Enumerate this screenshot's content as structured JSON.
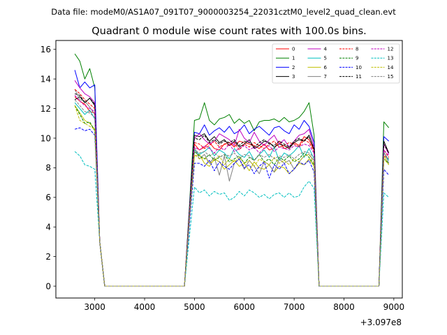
{
  "figure": {
    "suptitle": "Data file: modeM0/AS1A07_091T07_9000003254_22031cztM0_level2_quad_clean.evt"
  },
  "chart_data": {
    "type": "line",
    "title": "Quadrant 0 module wise count rates with 100.0s bins.",
    "xlabel": "",
    "ylabel": "",
    "x_offset_label": "+3.097e8",
    "xlim": [
      2220,
      9170
    ],
    "ylim": [
      -0.8,
      16.6
    ],
    "xticks": [
      3000,
      4000,
      5000,
      6000,
      7000,
      8000,
      9000
    ],
    "xtick_labels": [
      "3000",
      "4000",
      "5000",
      "6000",
      "7000",
      "8000",
      "9000"
    ],
    "yticks": [
      0,
      2,
      4,
      6,
      8,
      10,
      12,
      14,
      16
    ],
    "ytick_labels": [
      "0",
      "2",
      "4",
      "6",
      "8",
      "10",
      "12",
      "14",
      "16"
    ],
    "grid": false,
    "legend_placement": "top-right",
    "legend_columns": 4,
    "x": [
      2600,
      2700,
      2800,
      2900,
      3000,
      3100,
      3200,
      3300,
      3400,
      3500,
      3600,
      3700,
      3800,
      3900,
      4000,
      4100,
      4200,
      4300,
      4400,
      4500,
      4600,
      4700,
      4800,
      4900,
      5000,
      5100,
      5200,
      5300,
      5400,
      5500,
      5600,
      5700,
      5800,
      5900,
      6000,
      6100,
      6200,
      6300,
      6400,
      6500,
      6600,
      6700,
      6800,
      6900,
      7000,
      7100,
      7200,
      7300,
      7400,
      7500,
      7600,
      7700,
      7800,
      7900,
      8000,
      8100,
      8200,
      8300,
      8400,
      8500,
      8600,
      8700,
      8800,
      8900
    ],
    "series": [
      {
        "name": "0",
        "color": "#ff0000",
        "dash": "solid",
        "values": [
          12.8,
          12.5,
          12.3,
          11.8,
          11.7,
          3,
          0,
          0,
          0,
          0,
          0,
          0,
          0,
          0,
          0,
          0,
          0,
          0,
          0,
          0,
          0,
          0,
          0,
          5,
          9.6,
          9.2,
          9.4,
          9.7,
          9.3,
          9.2,
          9.6,
          9.7,
          9.4,
          9.8,
          9.7,
          9.6,
          9.5,
          9.3,
          9.6,
          9.2,
          9.3,
          9.8,
          9.3,
          9.4,
          9.7,
          9.5,
          10.1,
          9.9,
          9.2,
          0,
          0,
          0,
          0,
          0,
          0,
          0,
          0,
          0,
          0,
          0,
          0,
          0,
          8.8,
          8.6
        ]
      },
      {
        "name": "1",
        "color": "#008000",
        "dash": "solid",
        "values": [
          15.7,
          15.2,
          14,
          14.7,
          13.4,
          3,
          0,
          0,
          0,
          0,
          0,
          0,
          0,
          0,
          0,
          0,
          0,
          0,
          0,
          0,
          0,
          0,
          0,
          5.5,
          11.2,
          11.3,
          12.4,
          11.2,
          10.9,
          11.3,
          11.4,
          11.6,
          11,
          11.3,
          11,
          11.2,
          10.5,
          11.1,
          11.2,
          11.2,
          11.3,
          11.1,
          11.4,
          11.1,
          11.2,
          11.4,
          11.8,
          12.4,
          10.2,
          0,
          0,
          0,
          0,
          0,
          0,
          0,
          0,
          0,
          0,
          0,
          0,
          0,
          11.1,
          10.7
        ]
      },
      {
        "name": "2",
        "color": "#0000ff",
        "dash": "solid",
        "values": [
          14.6,
          13.4,
          13.8,
          13.4,
          13.6,
          3,
          0,
          0,
          0,
          0,
          0,
          0,
          0,
          0,
          0,
          0,
          0,
          0,
          0,
          0,
          0,
          0,
          0,
          5.3,
          10.4,
          10.3,
          10.9,
          10.2,
          10.5,
          10.7,
          10.4,
          10.8,
          10.3,
          10.5,
          10.9,
          10.3,
          10.6,
          10.8,
          10.5,
          10.2,
          10.7,
          10.8,
          10.5,
          10.3,
          10.9,
          10.6,
          11.2,
          10.8,
          9.7,
          0,
          0,
          0,
          0,
          0,
          0,
          0,
          0,
          0,
          0,
          0,
          0,
          0,
          10.1,
          9.8
        ]
      },
      {
        "name": "3",
        "color": "#000000",
        "dash": "solid",
        "values": [
          12.6,
          12.8,
          12.4,
          12.7,
          12.2,
          3,
          0,
          0,
          0,
          0,
          0,
          0,
          0,
          0,
          0,
          0,
          0,
          0,
          0,
          0,
          0,
          0,
          0,
          5.2,
          10.2,
          10.1,
          10.3,
          9.8,
          10.1,
          9.7,
          9.9,
          9.5,
          9.8,
          9.4,
          9.6,
          9.9,
          9.3,
          9.5,
          9.8,
          9.7,
          9.4,
          9.6,
          9.5,
          9.3,
          9.7,
          9.9,
          9.8,
          10.2,
          9.2,
          0,
          0,
          0,
          0,
          0,
          0,
          0,
          0,
          0,
          0,
          0,
          0,
          0,
          9.8,
          9
        ]
      },
      {
        "name": "4",
        "color": "#bf00bf",
        "dash": "solid",
        "values": [
          13.9,
          13.4,
          13,
          12.8,
          12.4,
          3,
          0,
          0,
          0,
          0,
          0,
          0,
          0,
          0,
          0,
          0,
          0,
          0,
          0,
          0,
          0,
          0,
          0,
          5.1,
          10,
          10.3,
          9.9,
          9.6,
          9.8,
          10.3,
          10.1,
          9.9,
          9.5,
          10.6,
          10,
          9.7,
          10.4,
          9.8,
          9.5,
          9.9,
          10.2,
          9.6,
          9.9,
          9.4,
          9.8,
          10.2,
          10.3,
          10.6,
          9.4,
          0,
          0,
          0,
          0,
          0,
          0,
          0,
          0,
          0,
          0,
          0,
          0,
          0,
          9.6,
          8.9
        ]
      },
      {
        "name": "5",
        "color": "#00bfbf",
        "dash": "solid",
        "values": [
          12.4,
          12,
          11.6,
          11.9,
          11.3,
          3,
          0,
          0,
          0,
          0,
          0,
          0,
          0,
          0,
          0,
          0,
          0,
          0,
          0,
          0,
          0,
          0,
          0,
          4.8,
          9.2,
          8.9,
          9.1,
          9.4,
          8.8,
          9.2,
          9,
          8.6,
          9.3,
          8.9,
          8.7,
          9.1,
          8.5,
          8.9,
          9.2,
          8.7,
          9.4,
          8.5,
          9,
          8.8,
          9.1,
          9.5,
          8.7,
          9.3,
          8.6,
          0,
          0,
          0,
          0,
          0,
          0,
          0,
          0,
          0,
          0,
          0,
          0,
          0,
          9,
          8.5
        ]
      },
      {
        "name": "6",
        "color": "#bfbf00",
        "dash": "solid",
        "values": [
          12.2,
          11.7,
          11.2,
          11,
          10.6,
          3,
          0,
          0,
          0,
          0,
          0,
          0,
          0,
          0,
          0,
          0,
          0,
          0,
          0,
          0,
          0,
          0,
          0,
          4.6,
          8.8,
          8.9,
          8.3,
          8.1,
          8.6,
          8.4,
          7.9,
          8.2,
          8.5,
          8.1,
          8.3,
          7.8,
          8.4,
          8,
          7.9,
          8.2,
          7.7,
          8.1,
          8,
          7.6,
          7.9,
          8.3,
          8.2,
          8.6,
          8.1,
          0,
          0,
          0,
          0,
          0,
          0,
          0,
          0,
          0,
          0,
          0,
          0,
          0,
          8.8,
          8.2
        ]
      },
      {
        "name": "7",
        "color": "#808080",
        "dash": "solid",
        "values": [
          13.3,
          12.6,
          12.5,
          12.1,
          11.6,
          3,
          0,
          0,
          0,
          0,
          0,
          0,
          0,
          0,
          0,
          0,
          0,
          0,
          0,
          0,
          0,
          0,
          0,
          4.5,
          9.4,
          8.6,
          8.9,
          8.3,
          8.7,
          7.5,
          8.8,
          7.1,
          8.3,
          8.6,
          7.9,
          8.5,
          8.1,
          7.6,
          8.4,
          8.2,
          7.7,
          8.6,
          8.3,
          8.5,
          7.9,
          8.4,
          8.8,
          8.9,
          8.5,
          0,
          0,
          0,
          0,
          0,
          0,
          0,
          0,
          0,
          0,
          0,
          0,
          0,
          9.1,
          8.3
        ]
      },
      {
        "name": "8",
        "color": "#ff0000",
        "dash": "dashed",
        "values": [
          13.3,
          13,
          12.6,
          12.3,
          12,
          3,
          0,
          0,
          0,
          0,
          0,
          0,
          0,
          0,
          0,
          0,
          0,
          0,
          0,
          0,
          0,
          0,
          0,
          5,
          9.7,
          9.6,
          9.3,
          9.5,
          9.8,
          9.4,
          9.6,
          9.5,
          9.7,
          9.2,
          9.6,
          9.4,
          9.7,
          9.5,
          9.3,
          9.6,
          9.8,
          9.4,
          9.5,
          9.7,
          9.6,
          9.4,
          9.9,
          9.7,
          9.1,
          0,
          0,
          0,
          0,
          0,
          0,
          0,
          0,
          0,
          0,
          0,
          0,
          0,
          9.2,
          8.7
        ]
      },
      {
        "name": "9",
        "color": "#008000",
        "dash": "dashed",
        "values": [
          12.2,
          11.6,
          11,
          11.1,
          10.5,
          3,
          0,
          0,
          0,
          0,
          0,
          0,
          0,
          0,
          0,
          0,
          0,
          0,
          0,
          0,
          0,
          0,
          0,
          4.7,
          9.1,
          8.8,
          8.6,
          8.9,
          8.5,
          8.7,
          8.9,
          8.4,
          8.6,
          8.8,
          8.3,
          8.7,
          8.5,
          8.9,
          8.4,
          8.6,
          8.2,
          8.7,
          8.5,
          8.8,
          8.4,
          8.6,
          9,
          8.7,
          8.2,
          0,
          0,
          0,
          0,
          0,
          0,
          0,
          0,
          0,
          0,
          0,
          0,
          0,
          8.6,
          8.3
        ]
      },
      {
        "name": "10",
        "color": "#0000ff",
        "dash": "dashed",
        "values": [
          10.6,
          10.7,
          10.5,
          10.6,
          10.2,
          3,
          0,
          0,
          0,
          0,
          0,
          0,
          0,
          0,
          0,
          0,
          0,
          0,
          0,
          0,
          0,
          0,
          0,
          4.2,
          8.3,
          8.3,
          8.1,
          8.5,
          7.8,
          8.4,
          8.1,
          7.9,
          8.3,
          8.6,
          8,
          8.2,
          7.6,
          8.1,
          8.4,
          7.3,
          8.2,
          7.9,
          8.3,
          7.6,
          7.9,
          8.4,
          8.2,
          8.5,
          7.7,
          0,
          0,
          0,
          0,
          0,
          0,
          0,
          0,
          0,
          0,
          0,
          0,
          0,
          7.9,
          7.5
        ]
      },
      {
        "name": "11",
        "color": "#000000",
        "dash": "dashed",
        "values": [
          13,
          12.9,
          12.4,
          12.7,
          12.3,
          3,
          0,
          0,
          0,
          0,
          0,
          0,
          0,
          0,
          0,
          0,
          0,
          0,
          0,
          0,
          0,
          0,
          0,
          5.1,
          10,
          9.9,
          10.2,
          9.7,
          9.9,
          9.6,
          9.8,
          9.7,
          9.9,
          9.5,
          9.8,
          9.7,
          9.4,
          9.7,
          9.9,
          9.6,
          9.5,
          9.8,
          9.6,
          9.4,
          9.8,
          10,
          9.8,
          10.1,
          9.3,
          0,
          0,
          0,
          0,
          0,
          0,
          0,
          0,
          0,
          0,
          0,
          0,
          0,
          9.6,
          9
        ]
      },
      {
        "name": "12",
        "color": "#bf00bf",
        "dash": "dashed",
        "values": [
          12.9,
          12.5,
          12.2,
          12,
          11.8,
          3,
          0,
          0,
          0,
          0,
          0,
          0,
          0,
          0,
          0,
          0,
          0,
          0,
          0,
          0,
          0,
          0,
          0,
          4.9,
          9.4,
          9.2,
          9.5,
          9.3,
          9,
          9.4,
          9.2,
          9.6,
          9.1,
          9.3,
          9.5,
          9.2,
          9.4,
          9,
          9.3,
          9.5,
          9.1,
          9.4,
          9.3,
          9.2,
          9.5,
          9.4,
          9.6,
          9.5,
          9,
          0,
          0,
          0,
          0,
          0,
          0,
          0,
          0,
          0,
          0,
          0,
          0,
          0,
          9.2,
          8.8
        ]
      },
      {
        "name": "13",
        "color": "#00bfbf",
        "dash": "dashed",
        "values": [
          9.1,
          8.8,
          8.2,
          8.1,
          7.9,
          3,
          0,
          0,
          0,
          0,
          0,
          0,
          0,
          0,
          0,
          0,
          0,
          0,
          0,
          0,
          0,
          0,
          0,
          3.4,
          6.7,
          6.3,
          6.5,
          6.1,
          6.4,
          6.2,
          6.3,
          5.8,
          6,
          6.4,
          6.1,
          6.5,
          6.3,
          6,
          6.2,
          5.9,
          6.2,
          6.3,
          6,
          6.3,
          6,
          6.1,
          6.7,
          7.1,
          6.6,
          0,
          0,
          0,
          0,
          0,
          0,
          0,
          0,
          0,
          0,
          0,
          0,
          0,
          6.3,
          6
        ]
      },
      {
        "name": "14",
        "color": "#bfbf00",
        "dash": "dashed",
        "values": [
          12.2,
          11.2,
          11,
          10.8,
          10.6,
          3,
          0,
          0,
          0,
          0,
          0,
          0,
          0,
          0,
          0,
          0,
          0,
          0,
          0,
          0,
          0,
          0,
          0,
          4.6,
          8.9,
          8.6,
          8.7,
          8.3,
          8.5,
          8.8,
          8.2,
          8.6,
          8.4,
          8.7,
          8.3,
          8.5,
          8.1,
          8.6,
          8.4,
          8.2,
          8.7,
          8.3,
          8.5,
          8.2,
          8.6,
          8.4,
          8.8,
          8.9,
          8.3,
          0,
          0,
          0,
          0,
          0,
          0,
          0,
          0,
          0,
          0,
          0,
          0,
          0,
          8.6,
          8.2
        ]
      },
      {
        "name": "15",
        "color": "#808080",
        "dash": "dashed",
        "values": [
          12.6,
          12.2,
          11.8,
          11.7,
          11.4,
          3,
          0,
          0,
          0,
          0,
          0,
          0,
          0,
          0,
          0,
          0,
          0,
          0,
          0,
          0,
          0,
          0,
          0,
          4.8,
          9.2,
          9,
          9.1,
          8.8,
          9,
          8.7,
          8.9,
          8.8,
          9,
          8.6,
          8.9,
          8.8,
          8.5,
          8.9,
          8.7,
          8.9,
          8.6,
          8.8,
          8.7,
          8.9,
          8.6,
          8.9,
          9.1,
          9,
          8.7,
          0,
          0,
          0,
          0,
          0,
          0,
          0,
          0,
          0,
          0,
          0,
          0,
          0,
          9,
          8.6
        ]
      }
    ]
  }
}
